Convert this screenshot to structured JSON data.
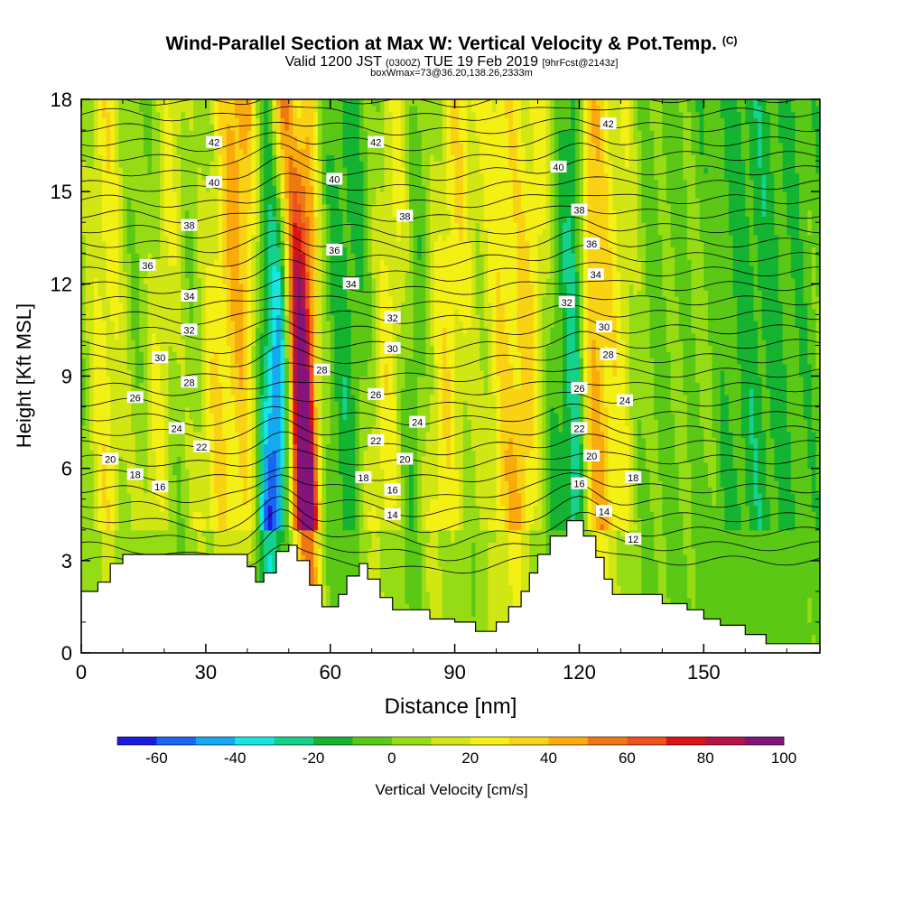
{
  "header": {
    "title": "Wind-Parallel Section at Max W: Vertical Velocity & Pot.Temp.",
    "title_mark": "(C)",
    "valid_prefix": "Valid 1200 JST",
    "valid_utc": "(0300Z)",
    "valid_date": "TUE 19 Feb 2019",
    "forecast": "[9hrFcst@2143z]",
    "box_info": "boxWmax=73@36.20,138.26,2333m"
  },
  "chart_data": {
    "type": "heatmap",
    "xlabel": "Distance [nm]",
    "ylabel": "Height [Kft MSL]",
    "xlim": [
      0,
      178
    ],
    "ylim": [
      0,
      18
    ],
    "x_ticks": [
      0,
      30,
      60,
      90,
      120,
      150
    ],
    "y_ticks": [
      0,
      3,
      6,
      9,
      12,
      15,
      18
    ],
    "colorbar": {
      "label": "Vertical Velocity [cm/s]",
      "tick_labels": [
        -60,
        -40,
        -20,
        0,
        20,
        40,
        60,
        80,
        100
      ],
      "bins": [
        -70,
        -60,
        -50,
        -40,
        -30,
        -20,
        -10,
        0,
        10,
        20,
        30,
        40,
        50,
        60,
        70,
        80,
        90,
        100
      ],
      "colors": [
        "#1a1ae0",
        "#1a66f2",
        "#14aaf2",
        "#14e6e6",
        "#14d28c",
        "#14b432",
        "#5ac814",
        "#96dc14",
        "#d2e614",
        "#f5f014",
        "#fad214",
        "#faaa0a",
        "#f07814",
        "#f0501e",
        "#dc1414",
        "#b41446",
        "#82147a"
      ]
    },
    "terrain_kft": [
      [
        0,
        2.0
      ],
      [
        4,
        2.0
      ],
      [
        4,
        2.3
      ],
      [
        7,
        2.3
      ],
      [
        7,
        2.9
      ],
      [
        10,
        2.9
      ],
      [
        10,
        3.2
      ],
      [
        40,
        3.2
      ],
      [
        40,
        2.8
      ],
      [
        42,
        2.8
      ],
      [
        42,
        2.3
      ],
      [
        44,
        2.3
      ],
      [
        44,
        2.6
      ],
      [
        47,
        2.6
      ],
      [
        47,
        3.3
      ],
      [
        50,
        3.3
      ],
      [
        50,
        3.5
      ],
      [
        52,
        3.5
      ],
      [
        52,
        3.0
      ],
      [
        55,
        3.0
      ],
      [
        55,
        2.2
      ],
      [
        58,
        2.2
      ],
      [
        58,
        1.5
      ],
      [
        62,
        1.5
      ],
      [
        62,
        1.9
      ],
      [
        64,
        1.9
      ],
      [
        64,
        2.5
      ],
      [
        67,
        2.5
      ],
      [
        67,
        2.9
      ],
      [
        69,
        2.9
      ],
      [
        69,
        2.4
      ],
      [
        72,
        2.4
      ],
      [
        72,
        1.8
      ],
      [
        75,
        1.8
      ],
      [
        75,
        1.4
      ],
      [
        84,
        1.4
      ],
      [
        84,
        1.1
      ],
      [
        90,
        1.1
      ],
      [
        90,
        1.0
      ],
      [
        95,
        1.0
      ],
      [
        95,
        0.7
      ],
      [
        100,
        0.7
      ],
      [
        100,
        1.0
      ],
      [
        103,
        1.0
      ],
      [
        103,
        1.5
      ],
      [
        106,
        1.5
      ],
      [
        106,
        2.0
      ],
      [
        108,
        2.0
      ],
      [
        108,
        2.6
      ],
      [
        110,
        2.6
      ],
      [
        110,
        3.2
      ],
      [
        113,
        3.2
      ],
      [
        113,
        3.8
      ],
      [
        117,
        3.8
      ],
      [
        117,
        4.3
      ],
      [
        121,
        4.3
      ],
      [
        121,
        3.8
      ],
      [
        124,
        3.8
      ],
      [
        124,
        3.1
      ],
      [
        126,
        3.1
      ],
      [
        126,
        2.4
      ],
      [
        128,
        2.4
      ],
      [
        128,
        1.9
      ],
      [
        131,
        1.9
      ],
      [
        131,
        1.9
      ],
      [
        140,
        1.9
      ],
      [
        140,
        1.6
      ],
      [
        146,
        1.6
      ],
      [
        146,
        1.4
      ],
      [
        150,
        1.4
      ],
      [
        150,
        1.1
      ],
      [
        154,
        1.1
      ],
      [
        154,
        0.9
      ],
      [
        160,
        0.9
      ],
      [
        160,
        0.6
      ],
      [
        165,
        0.6
      ],
      [
        165,
        0.3
      ],
      [
        172,
        0.3
      ],
      [
        172,
        0.3
      ],
      [
        178,
        0.3
      ]
    ],
    "theta_labels": [
      {
        "v": "42",
        "x": 32,
        "y": 16.6
      },
      {
        "v": "40",
        "x": 32,
        "y": 15.3
      },
      {
        "v": "38",
        "x": 26,
        "y": 13.9
      },
      {
        "v": "36",
        "x": 16,
        "y": 12.6
      },
      {
        "v": "34",
        "x": 26,
        "y": 11.6
      },
      {
        "v": "32",
        "x": 26,
        "y": 10.5
      },
      {
        "v": "30",
        "x": 19,
        "y": 9.6
      },
      {
        "v": "28",
        "x": 26,
        "y": 8.8
      },
      {
        "v": "26",
        "x": 13,
        "y": 8.3
      },
      {
        "v": "24",
        "x": 23,
        "y": 7.3
      },
      {
        "v": "22",
        "x": 29,
        "y": 6.7
      },
      {
        "v": "20",
        "x": 7,
        "y": 6.3
      },
      {
        "v": "18",
        "x": 13,
        "y": 5.8
      },
      {
        "v": "16",
        "x": 19,
        "y": 5.4
      },
      {
        "v": "42",
        "x": 71,
        "y": 16.6
      },
      {
        "v": "40",
        "x": 61,
        "y": 15.4
      },
      {
        "v": "38",
        "x": 78,
        "y": 14.2
      },
      {
        "v": "36",
        "x": 61,
        "y": 13.1
      },
      {
        "v": "34",
        "x": 65,
        "y": 12.0
      },
      {
        "v": "32",
        "x": 75,
        "y": 10.9
      },
      {
        "v": "30",
        "x": 75,
        "y": 9.9
      },
      {
        "v": "28",
        "x": 58,
        "y": 9.2
      },
      {
        "v": "26",
        "x": 71,
        "y": 8.4
      },
      {
        "v": "24",
        "x": 81,
        "y": 7.5
      },
      {
        "v": "22",
        "x": 71,
        "y": 6.9
      },
      {
        "v": "20",
        "x": 78,
        "y": 6.3
      },
      {
        "v": "18",
        "x": 68,
        "y": 5.7
      },
      {
        "v": "16",
        "x": 75,
        "y": 5.3
      },
      {
        "v": "14",
        "x": 75,
        "y": 4.5
      },
      {
        "v": "42",
        "x": 127,
        "y": 17.2
      },
      {
        "v": "40",
        "x": 115,
        "y": 15.8
      },
      {
        "v": "38",
        "x": 120,
        "y": 14.4
      },
      {
        "v": "36",
        "x": 123,
        "y": 13.3
      },
      {
        "v": "34",
        "x": 124,
        "y": 12.3
      },
      {
        "v": "32",
        "x": 117,
        "y": 11.4
      },
      {
        "v": "30",
        "x": 126,
        "y": 10.6
      },
      {
        "v": "28",
        "x": 127,
        "y": 9.7
      },
      {
        "v": "26",
        "x": 120,
        "y": 8.6
      },
      {
        "v": "24",
        "x": 131,
        "y": 8.2
      },
      {
        "v": "22",
        "x": 120,
        "y": 7.3
      },
      {
        "v": "20",
        "x": 123,
        "y": 6.4
      },
      {
        "v": "18",
        "x": 133,
        "y": 5.7
      },
      {
        "v": "16",
        "x": 120,
        "y": 5.5
      },
      {
        "v": "14",
        "x": 126,
        "y": 4.6
      },
      {
        "v": "12",
        "x": 133,
        "y": 3.7
      }
    ]
  }
}
